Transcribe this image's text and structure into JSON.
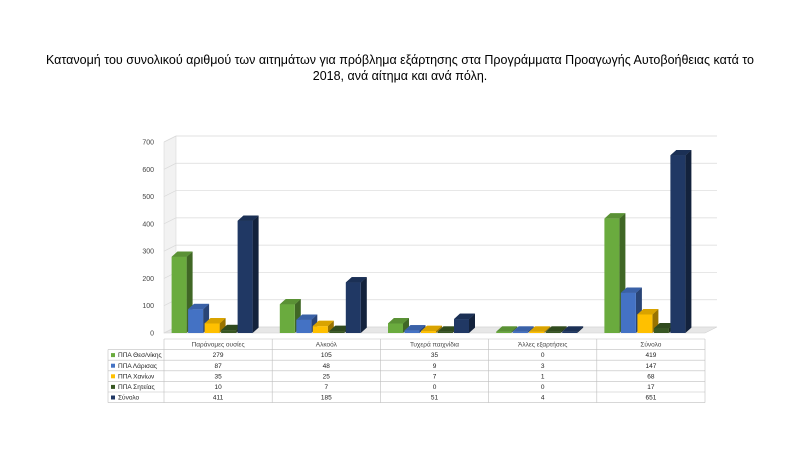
{
  "chart_data": {
    "type": "bar",
    "title": "Κατανομή του συνολικού αριθμού των αιτημάτων για πρόβλημα εξάρτησης στα Προγράμματα Προαγωγής Αυτοβοήθειας κατά το 2018, ανά αίτημα και ανά πόλη.",
    "categories": [
      "Παράνομες ουσίες",
      "Αλκοόλ",
      "Τυχερά παιχνίδια",
      "Άλλες εξαρτήσεις",
      "Σύνολο"
    ],
    "series": [
      {
        "name": "ΠΠΑ Θεσ/νίκης",
        "values": [
          279,
          105,
          35,
          0,
          419
        ],
        "color": "#6aab3e"
      },
      {
        "name": "ΠΠΑ Λάρισας",
        "values": [
          87,
          48,
          9,
          3,
          147
        ],
        "color": "#4472c4"
      },
      {
        "name": "ΠΠΑ Χανίων",
        "values": [
          35,
          25,
          7,
          1,
          68
        ],
        "color": "#ffc000"
      },
      {
        "name": "ΠΠΑ Σητείας",
        "values": [
          10,
          7,
          0,
          0,
          17
        ],
        "color": "#385723"
      },
      {
        "name": "Σύνολο",
        "values": [
          411,
          185,
          51,
          4,
          651
        ],
        "color": "#203864"
      }
    ],
    "yticks": [
      0,
      100,
      200,
      300,
      400,
      500,
      600,
      700
    ],
    "ylim": [
      0,
      700
    ],
    "grid": true,
    "legend": "data table below",
    "three_d": true
  }
}
